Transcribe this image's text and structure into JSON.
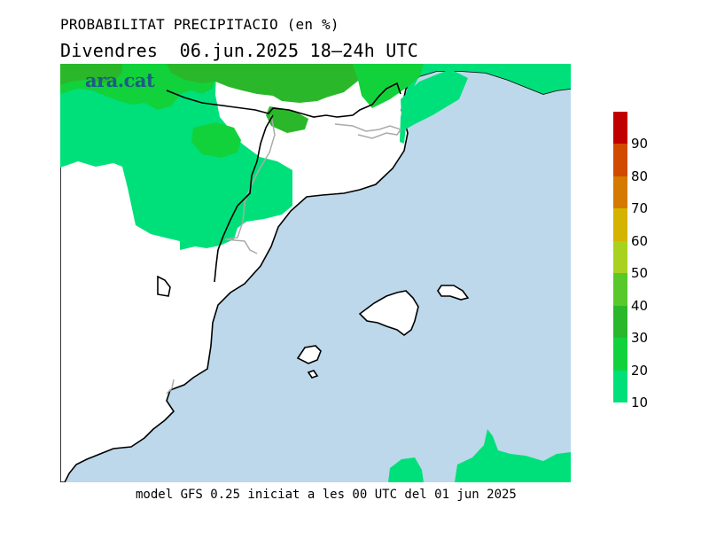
{
  "header": {
    "title": "PROBABILITAT PRECIPITACIO (en %)",
    "subtitle": "Divendres  06.jun.2025 18–24h UTC"
  },
  "brand": {
    "logo_text": "ara.cat"
  },
  "footer": {
    "model_info": "model GFS 0.25 iniciat a les 00 UTC del 01 jun 2025"
  },
  "legend": {
    "ticks": [
      "10",
      "20",
      "30",
      "40",
      "50",
      "60",
      "70",
      "80",
      "90"
    ],
    "colors": [
      "#00e07a",
      "#12d23c",
      "#2ab82a",
      "#58c82a",
      "#a8d21e",
      "#d4b400",
      "#d47a00",
      "#d04a00",
      "#c00000"
    ]
  },
  "map": {
    "sea_color": "#bcd8ea",
    "land_color": "#ffffff",
    "boundary_color": "#000000",
    "border_color": "#aaaaaa"
  }
}
